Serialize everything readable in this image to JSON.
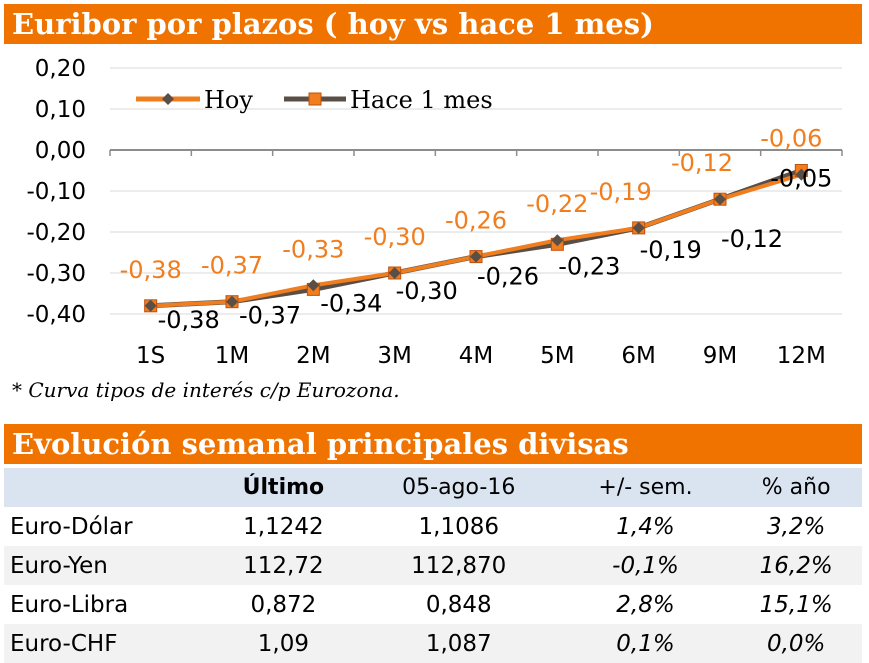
{
  "chart_section_title": "Euribor por plazos ( hoy vs hace 1 mes)",
  "footnote": "* Curva tipos de interés c/p Eurozona.",
  "table_section_title": "Evolución semanal principales divisas",
  "chart_data": {
    "type": "line",
    "categories": [
      "1S",
      "1M",
      "2M",
      "3M",
      "4M",
      "5M",
      "6M",
      "9M",
      "12M"
    ],
    "yticks": [
      "0,20",
      "0,10",
      "0,00",
      "-0,10",
      "-0,20",
      "-0,30",
      "-0,40"
    ],
    "ylim": [
      -0.4,
      0.2
    ],
    "grid": true,
    "legend_position": "top-left",
    "series": [
      {
        "name": "Hoy",
        "color": "#f07d1e",
        "marker": "diamond",
        "values": [
          -0.38,
          -0.37,
          -0.33,
          -0.3,
          -0.26,
          -0.22,
          -0.19,
          -0.12,
          -0.06
        ],
        "labels": [
          "-0,38",
          "-0,37",
          "-0,33",
          "-0,30",
          "-0,26",
          "-0,22",
          "-0,19",
          "-0,12",
          "-0,06"
        ],
        "label_color": "#f07d1e"
      },
      {
        "name": "Hace 1 mes",
        "color": "#5a4f46",
        "marker": "square",
        "marker_fill": "#f07d1e",
        "values": [
          -0.38,
          -0.37,
          -0.34,
          -0.3,
          -0.26,
          -0.23,
          -0.19,
          -0.12,
          -0.05
        ],
        "labels": [
          "-0,38",
          "-0,37",
          "-0,34",
          "-0,30",
          "-0,26",
          "-0,23",
          "-0,19",
          "-0,12",
          "-0,05"
        ],
        "label_color": "#000000"
      }
    ]
  },
  "table": {
    "headers": [
      "",
      "Último",
      "05-ago-16",
      "+/- sem.",
      "% año"
    ],
    "rows": [
      [
        "Euro-Dólar",
        "1,1242",
        "1,1086",
        "1,4%",
        "3,2%"
      ],
      [
        "Euro-Yen",
        "112,72",
        "112,870",
        "-0,1%",
        "16,2%"
      ],
      [
        "Euro-Libra",
        "0,872",
        "0,848",
        "2,8%",
        "15,1%"
      ],
      [
        "Euro-CHF",
        "1,09",
        "1,087",
        "0,1%",
        "0,0%"
      ]
    ]
  },
  "colors": {
    "accent": "#f07300",
    "header_row": "#dae3f0",
    "alt_row": "#f2f2f2"
  }
}
